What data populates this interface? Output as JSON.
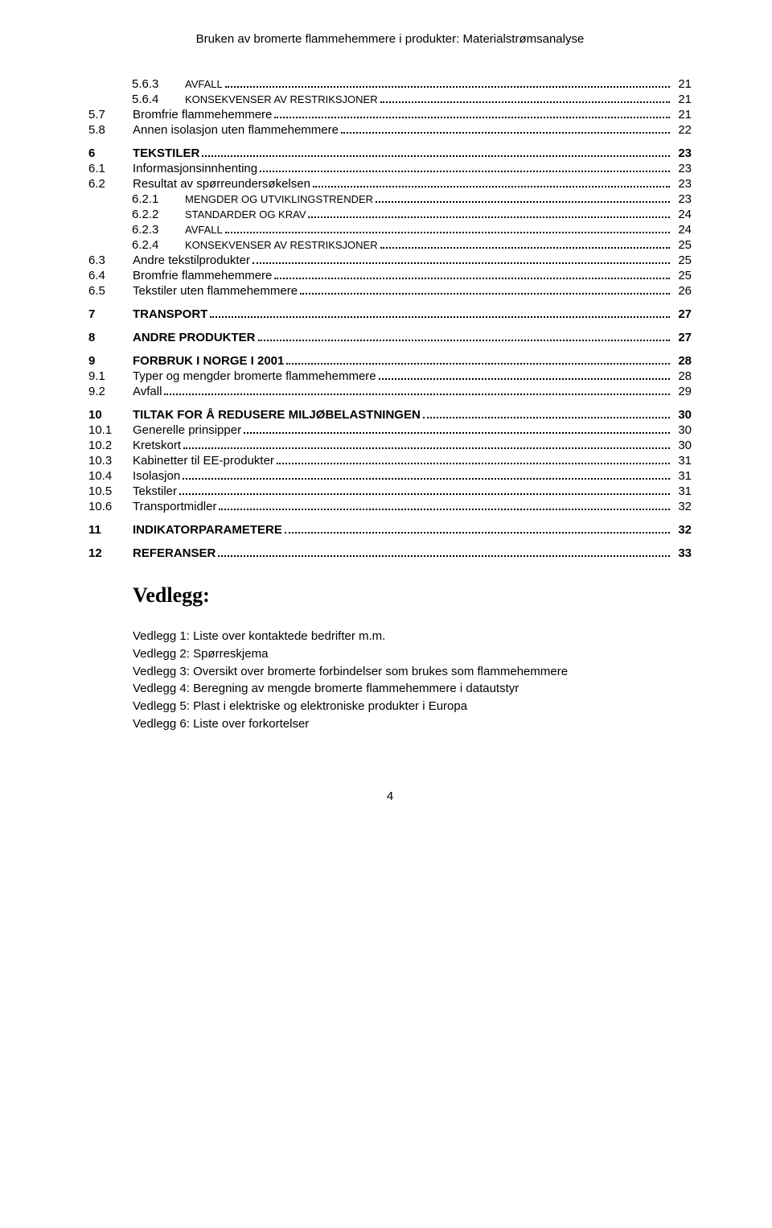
{
  "header": "Bruken av bromerte flammehemmere i produkter: Materialstrømsanalyse",
  "toc": [
    {
      "num": "5.6.3",
      "label": "AVFALL",
      "page": "21",
      "level": 3
    },
    {
      "num": "5.6.4",
      "label": "KONSEKVENSER AV RESTRIKSJONER",
      "page": "21",
      "level": 3
    },
    {
      "num": "5.7",
      "label": "Bromfrie flammehemmere",
      "page": "21",
      "level": 2
    },
    {
      "num": "5.8",
      "label": "Annen isolasjon uten flammehemmere",
      "page": "22",
      "level": 2
    },
    {
      "num": "6",
      "label": "TEKSTILER",
      "page": "23",
      "level": 1,
      "spaced": true
    },
    {
      "num": "6.1",
      "label": "Informasjonsinnhenting",
      "page": "23",
      "level": 2
    },
    {
      "num": "6.2",
      "label": "Resultat av spørreundersøkelsen",
      "page": "23",
      "level": 2
    },
    {
      "num": "6.2.1",
      "label": "MENGDER OG UTVIKLINGSTRENDER",
      "page": "23",
      "level": 3
    },
    {
      "num": "6.2.2",
      "label": "STANDARDER OG KRAV",
      "page": "24",
      "level": 3
    },
    {
      "num": "6.2.3",
      "label": "AVFALL",
      "page": "24",
      "level": 3
    },
    {
      "num": "6.2.4",
      "label": "KONSEKVENSER AV RESTRIKSJONER",
      "page": "25",
      "level": 3
    },
    {
      "num": "6.3",
      "label": "Andre tekstilprodukter",
      "page": "25",
      "level": 2
    },
    {
      "num": "6.4",
      "label": "Bromfrie flammehemmere",
      "page": "25",
      "level": 2
    },
    {
      "num": "6.5",
      "label": "Tekstiler uten flammehemmere",
      "page": "26",
      "level": 2
    },
    {
      "num": "7",
      "label": "TRANSPORT",
      "page": "27",
      "level": 1,
      "spaced": true
    },
    {
      "num": "8",
      "label": "ANDRE PRODUKTER",
      "page": "27",
      "level": 1,
      "spaced": true
    },
    {
      "num": "9",
      "label": "FORBRUK I NORGE I 2001",
      "page": "28",
      "level": 1,
      "spaced": true
    },
    {
      "num": "9.1",
      "label": "Typer og mengder bromerte flammehemmere",
      "page": "28",
      "level": 2
    },
    {
      "num": "9.2",
      "label": "Avfall",
      "page": "29",
      "level": 2
    },
    {
      "num": "10",
      "label": "TILTAK FOR Å REDUSERE MILJØBELASTNINGEN",
      "page": "30",
      "level": 1,
      "spaced": true
    },
    {
      "num": "10.1",
      "label": "Generelle prinsipper",
      "page": "30",
      "level": 2
    },
    {
      "num": "10.2",
      "label": "Kretskort",
      "page": "30",
      "level": 2
    },
    {
      "num": "10.3",
      "label": "Kabinetter til EE-produkter",
      "page": "31",
      "level": 2
    },
    {
      "num": "10.4",
      "label": "Isolasjon",
      "page": "31",
      "level": 2
    },
    {
      "num": "10.5",
      "label": "Tekstiler",
      "page": "31",
      "level": 2
    },
    {
      "num": "10.6",
      "label": "Transportmidler",
      "page": "32",
      "level": 2
    },
    {
      "num": "11",
      "label": "INDIKATORPARAMETERE",
      "page": "32",
      "level": 1,
      "spaced": true
    },
    {
      "num": "12",
      "label": "REFERANSER",
      "page": "33",
      "level": 1,
      "spaced": true
    }
  ],
  "vedlegg_title": "Vedlegg:",
  "vedlegg_items": [
    "Vedlegg 1: Liste over kontaktede bedrifter m.m.",
    "Vedlegg 2: Spørreskjema",
    "Vedlegg 3: Oversikt over bromerte forbindelser som brukes som flammehemmere",
    "Vedlegg 4: Beregning av mengde bromerte flammehemmere i datautstyr",
    "Vedlegg 5: Plast i elektriske og elektroniske produkter i Europa",
    "Vedlegg 6: Liste over forkortelser"
  ],
  "page_number": "4"
}
